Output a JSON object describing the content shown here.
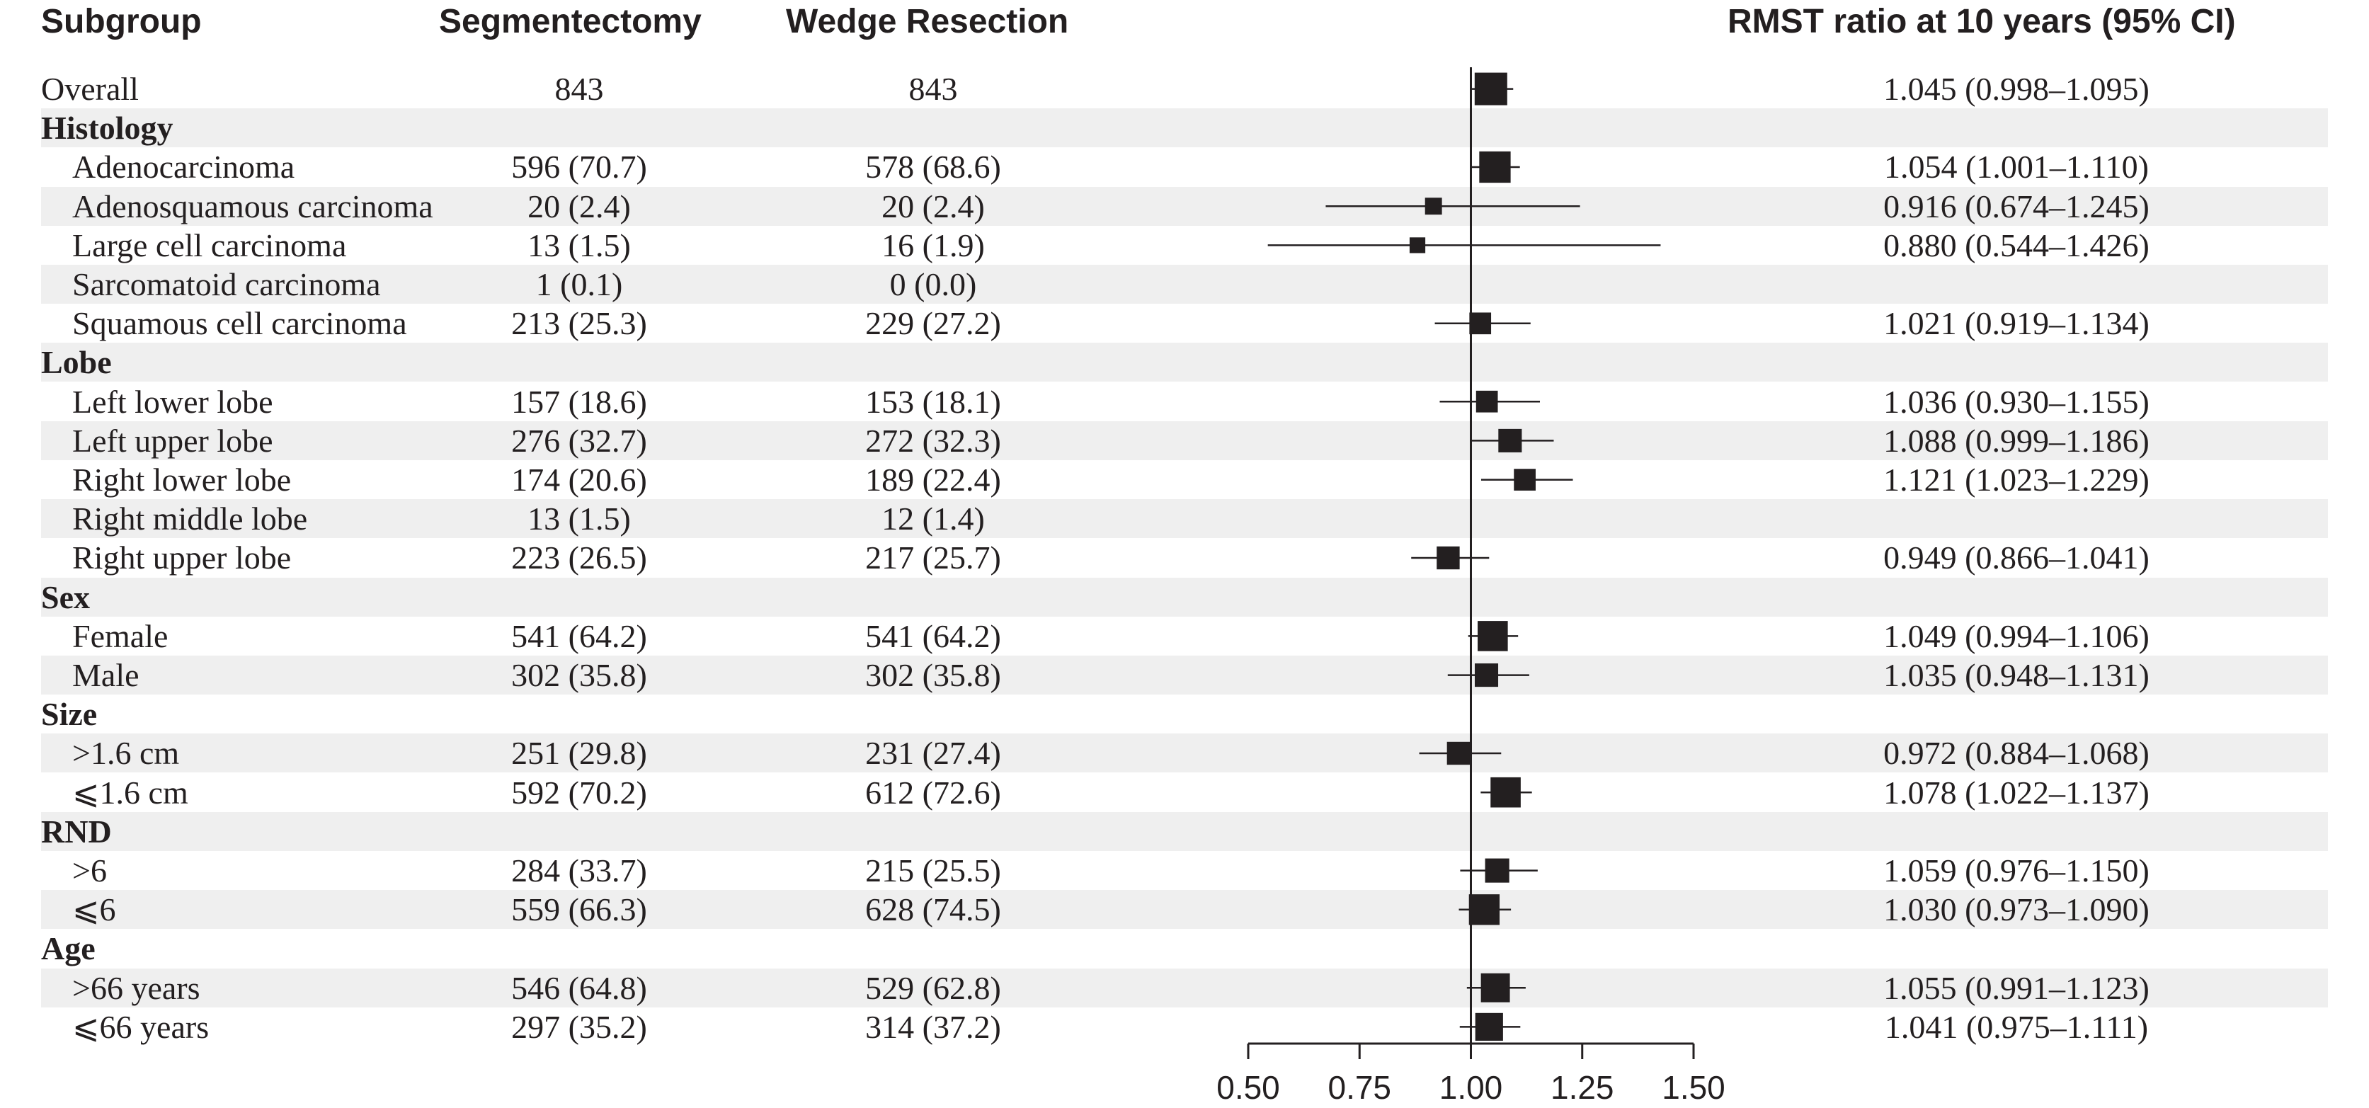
{
  "headers": {
    "subgroup": "Subgroup",
    "segmentectomy": "Segmentectomy",
    "wedge": "Wedge Resection",
    "ratio": "RMST ratio at 10 years (95% CI)"
  },
  "chart_data": {
    "type": "forest",
    "title": "",
    "xlabel": "",
    "ylabel": "",
    "xlim": [
      0.5,
      1.5
    ],
    "x_ticks": [
      "0.50",
      "0.75",
      "1.00",
      "1.25",
      "1.50"
    ],
    "reference_line": 1.0,
    "grid": false,
    "legend": "none",
    "rows": [
      {
        "label": "Overall",
        "kind": "item",
        "indent": false,
        "seg": "843",
        "wedge": "843",
        "est": 1.045,
        "lo": 0.998,
        "hi": 1.095,
        "ci_text": "1.045 (0.998–1.095)",
        "weight": 1.0
      },
      {
        "label": "Histology",
        "kind": "group"
      },
      {
        "label": "Adenocarcinoma",
        "kind": "item",
        "indent": true,
        "seg": "596 (70.7)",
        "wedge": "578 (68.6)",
        "est": 1.054,
        "lo": 1.001,
        "hi": 1.11,
        "ci_text": "1.054 (1.001–1.110)",
        "weight": 0.95
      },
      {
        "label": "Adenosquamous carcinoma",
        "kind": "item",
        "indent": true,
        "seg": "20 (2.4)",
        "wedge": "20 (2.4)",
        "est": 0.916,
        "lo": 0.674,
        "hi": 1.245,
        "ci_text": "0.916 (0.674–1.245)",
        "weight": 0.35
      },
      {
        "label": "Large cell carcinoma",
        "kind": "item",
        "indent": true,
        "seg": "13 (1.5)",
        "wedge": "16 (1.9)",
        "est": 0.88,
        "lo": 0.544,
        "hi": 1.426,
        "ci_text": "0.880 (0.544–1.426)",
        "weight": 0.3
      },
      {
        "label": "Sarcomatoid carcinoma",
        "kind": "item",
        "indent": true,
        "seg": "1 (0.1)",
        "wedge": "0 (0.0)",
        "est": null,
        "lo": null,
        "hi": null,
        "ci_text": "",
        "weight": 0
      },
      {
        "label": "Squamous cell carcinoma",
        "kind": "item",
        "indent": true,
        "seg": "213 (25.3)",
        "wedge": "229 (27.2)",
        "est": 1.021,
        "lo": 0.919,
        "hi": 1.134,
        "ci_text": "1.021 (0.919–1.134)",
        "weight": 0.55
      },
      {
        "label": "Lobe",
        "kind": "group"
      },
      {
        "label": "Left lower lobe",
        "kind": "item",
        "indent": true,
        "seg": "157 (18.6)",
        "wedge": "153 (18.1)",
        "est": 1.036,
        "lo": 0.93,
        "hi": 1.155,
        "ci_text": "1.036 (0.930–1.155)",
        "weight": 0.55
      },
      {
        "label": "Left upper lobe",
        "kind": "item",
        "indent": true,
        "seg": "276 (32.7)",
        "wedge": "272 (32.3)",
        "est": 1.088,
        "lo": 0.999,
        "hi": 1.186,
        "ci_text": "1.088 (0.999–1.186)",
        "weight": 0.62
      },
      {
        "label": "Right lower lobe",
        "kind": "item",
        "indent": true,
        "seg": "174 (20.6)",
        "wedge": "189 (22.4)",
        "est": 1.121,
        "lo": 1.023,
        "hi": 1.229,
        "ci_text": "1.121 (1.023–1.229)",
        "weight": 0.55
      },
      {
        "label": "Right middle lobe",
        "kind": "item",
        "indent": true,
        "seg": "13 (1.5)",
        "wedge": "12 (1.4)",
        "est": null,
        "lo": null,
        "hi": null,
        "ci_text": "",
        "weight": 0
      },
      {
        "label": "Right upper lobe",
        "kind": "item",
        "indent": true,
        "seg": "223 (26.5)",
        "wedge": "217 (25.7)",
        "est": 0.949,
        "lo": 0.866,
        "hi": 1.041,
        "ci_text": "0.949 (0.866–1.041)",
        "weight": 0.6
      },
      {
        "label": "Sex",
        "kind": "group"
      },
      {
        "label": "Female",
        "kind": "item",
        "indent": true,
        "seg": "541 (64.2)",
        "wedge": "541 (64.2)",
        "est": 1.049,
        "lo": 0.994,
        "hi": 1.106,
        "ci_text": "1.049 (0.994–1.106)",
        "weight": 0.9
      },
      {
        "label": "Male",
        "kind": "item",
        "indent": true,
        "seg": "302 (35.8)",
        "wedge": "302 (35.8)",
        "est": 1.035,
        "lo": 0.948,
        "hi": 1.131,
        "ci_text": "1.035 (0.948–1.131)",
        "weight": 0.62
      },
      {
        "label": "Size",
        "kind": "group"
      },
      {
        "label": ">1.6 cm",
        "kind": "item",
        "indent": true,
        "seg": "251 (29.8)",
        "wedge": "231 (27.4)",
        "est": 0.972,
        "lo": 0.884,
        "hi": 1.068,
        "ci_text": "0.972 (0.884–1.068)",
        "weight": 0.6
      },
      {
        "label": "⩽1.6 cm",
        "kind": "item",
        "indent": true,
        "seg": "592 (70.2)",
        "wedge": "612 (72.6)",
        "est": 1.078,
        "lo": 1.022,
        "hi": 1.137,
        "ci_text": "1.078 (1.022–1.137)",
        "weight": 0.9
      },
      {
        "label": "RND",
        "kind": "group"
      },
      {
        "label": ">6",
        "kind": "item",
        "indent": true,
        "seg": "284 (33.7)",
        "wedge": "215 (25.5)",
        "est": 1.059,
        "lo": 0.976,
        "hi": 1.15,
        "ci_text": "1.059 (0.976–1.150)",
        "weight": 0.65
      },
      {
        "label": "⩽6",
        "kind": "item",
        "indent": true,
        "seg": "559 (66.3)",
        "wedge": "628 (74.5)",
        "est": 1.03,
        "lo": 0.973,
        "hi": 1.09,
        "ci_text": "1.030 (0.973–1.090)",
        "weight": 0.92
      },
      {
        "label": "Age",
        "kind": "group"
      },
      {
        "label": ">66 years",
        "kind": "item",
        "indent": true,
        "seg": "546 (64.8)",
        "wedge": "529 (62.8)",
        "est": 1.055,
        "lo": 0.991,
        "hi": 1.123,
        "ci_text": "1.055 (0.991–1.123)",
        "weight": 0.85
      },
      {
        "label": "⩽66 years",
        "kind": "item",
        "indent": true,
        "seg": "297 (35.2)",
        "wedge": "314 (37.2)",
        "est": 1.041,
        "lo": 0.975,
        "hi": 1.111,
        "ci_text": "1.041 (0.975–1.111)",
        "weight": 0.8
      }
    ]
  }
}
